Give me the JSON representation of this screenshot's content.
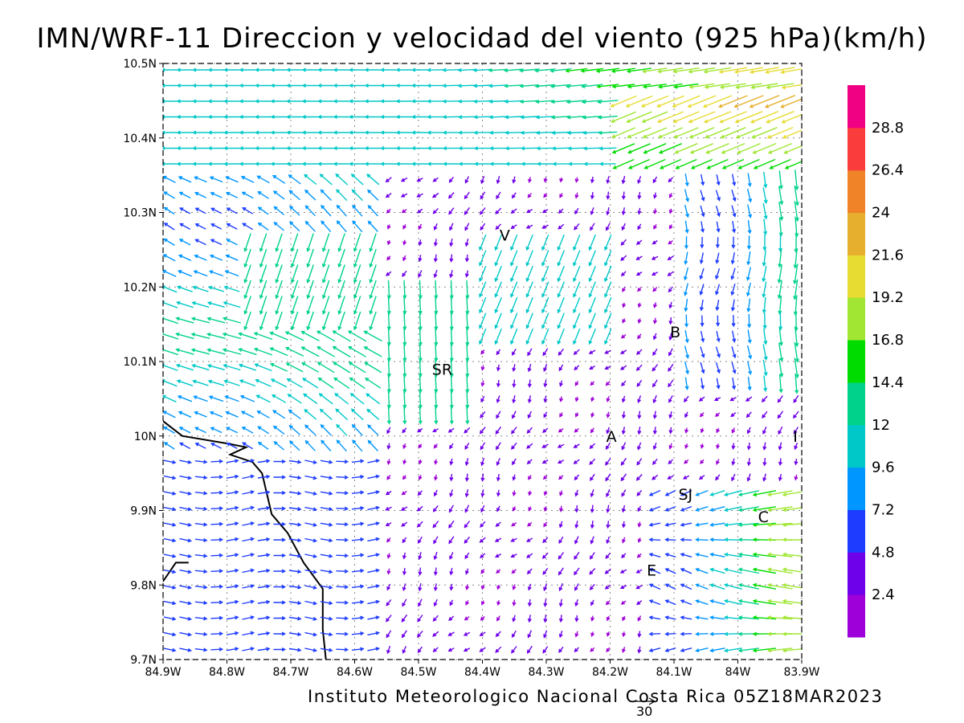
{
  "title": "IMN/WRF-11 Direccion y velocidad del viento (925 hPa)(km/h)",
  "credit": "Instituto Meteorologico Nacional Costa Rica 05Z18MAR2023",
  "reference_vector": {
    "label": "30",
    "speed_kmh": 30
  },
  "map": {
    "lon_range": [
      -84.9,
      -83.9
    ],
    "lat_range": [
      9.7,
      10.5
    ],
    "lon_ticks": [
      {
        "value": -84.9,
        "label": "84.9W"
      },
      {
        "value": -84.8,
        "label": "84.8W"
      },
      {
        "value": -84.7,
        "label": "84.7W"
      },
      {
        "value": -84.6,
        "label": "84.6W"
      },
      {
        "value": -84.5,
        "label": "84.5W"
      },
      {
        "value": -84.4,
        "label": "84.4W"
      },
      {
        "value": -84.3,
        "label": "84.3W"
      },
      {
        "value": -84.2,
        "label": "84.2W"
      },
      {
        "value": -84.1,
        "label": "84.1W"
      },
      {
        "value": -84.0,
        "label": "84W"
      },
      {
        "value": -83.9,
        "label": "83.9W"
      }
    ],
    "lat_ticks": [
      {
        "value": 9.7,
        "label": "9.7N"
      },
      {
        "value": 9.8,
        "label": "9.8N"
      },
      {
        "value": 9.9,
        "label": "9.9N"
      },
      {
        "value": 10.0,
        "label": "10N"
      },
      {
        "value": 10.1,
        "label": "10.1N"
      },
      {
        "value": 10.2,
        "label": "10.2N"
      },
      {
        "value": 10.3,
        "label": "10.3N"
      },
      {
        "value": 10.4,
        "label": "10.4N"
      },
      {
        "value": 10.5,
        "label": "10.5N"
      }
    ],
    "grid": true,
    "cities": [
      {
        "label": "V",
        "lon": -84.365,
        "lat": 10.27
      },
      {
        "label": "SR",
        "lon": -84.463,
        "lat": 10.09
      },
      {
        "label": "B",
        "lon": -84.098,
        "lat": 10.14
      },
      {
        "label": "A",
        "lon": -84.198,
        "lat": 10.0
      },
      {
        "label": "I",
        "lon": -83.91,
        "lat": 10.0
      },
      {
        "label": "SJ",
        "lon": -84.082,
        "lat": 9.922
      },
      {
        "label": "C",
        "lon": -83.96,
        "lat": 9.892
      },
      {
        "label": "E",
        "lon": -84.135,
        "lat": 9.82
      }
    ],
    "coastline": [
      [
        -84.9,
        10.02
      ],
      [
        -84.87,
        10.0
      ],
      [
        -84.8,
        9.99
      ],
      [
        -84.77,
        9.985
      ],
      [
        -84.795,
        9.975
      ],
      [
        -84.76,
        9.965
      ],
      [
        -84.745,
        9.95
      ],
      [
        -84.73,
        9.895
      ],
      [
        -84.705,
        9.87
      ],
      [
        -84.68,
        9.83
      ],
      [
        -84.65,
        9.795
      ],
      [
        -84.65,
        9.74
      ],
      [
        -84.645,
        9.7
      ]
    ],
    "coastline_inlet": [
      [
        -84.9,
        9.805
      ],
      [
        -84.88,
        9.83
      ],
      [
        -84.86,
        9.83
      ]
    ]
  },
  "colorbar": {
    "colors": [
      "#9d00d8",
      "#6e00ea",
      "#1e3cff",
      "#0096ff",
      "#00c8c8",
      "#00d28c",
      "#00dc00",
      "#a0e632",
      "#e6dc32",
      "#e6af2d",
      "#f08228",
      "#fa3c3c",
      "#f00082"
    ],
    "labels": [
      "2.4",
      "4.8",
      "7.2",
      "9.6",
      "12",
      "14.4",
      "16.8",
      "19.2",
      "21.6",
      "24",
      "26.4",
      "28.8"
    ]
  }
}
